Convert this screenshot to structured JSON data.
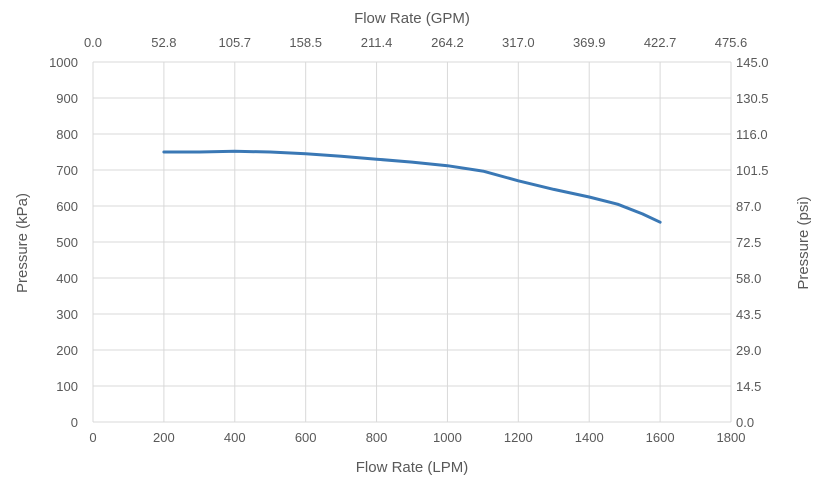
{
  "chart_data": {
    "type": "line",
    "x_bottom": {
      "label": "Flow Rate (LPM)",
      "range": [
        0,
        1800
      ],
      "ticks": [
        "0",
        "200",
        "400",
        "600",
        "800",
        "1000",
        "1200",
        "1400",
        "1600",
        "1800"
      ]
    },
    "x_top": {
      "label": "Flow Rate (GPM)",
      "range": [
        0.0,
        475.6
      ],
      "ticks": [
        "0.0",
        "52.8",
        "105.7",
        "158.5",
        "211.4",
        "264.2",
        "317.0",
        "369.9",
        "422.7",
        "475.6"
      ]
    },
    "y_left": {
      "label": "Pressure (kPa)",
      "range": [
        0,
        1000
      ],
      "ticks": [
        "0",
        "100",
        "200",
        "300",
        "400",
        "500",
        "600",
        "700",
        "800",
        "900",
        "1000"
      ]
    },
    "y_right": {
      "label": "Pressure (psi)",
      "range": [
        0.0,
        145.0
      ],
      "ticks": [
        "0.0",
        "14.5",
        "29.0",
        "43.5",
        "58.0",
        "72.5",
        "87.0",
        "101.5",
        "116.0",
        "130.5",
        "145.0"
      ]
    },
    "grid": true,
    "legend": "none",
    "series": [
      {
        "color": "#3a78b5",
        "x": [
          200,
          300,
          400,
          500,
          600,
          700,
          800,
          900,
          1000,
          1100,
          1200,
          1300,
          1400,
          1480,
          1550,
          1600
        ],
        "y": [
          750,
          750,
          752,
          750,
          745,
          738,
          730,
          722,
          712,
          697,
          670,
          646,
          625,
          605,
          578,
          555
        ]
      }
    ],
    "colors": {
      "grid": "#d9d9d9",
      "text": "#595959"
    }
  }
}
